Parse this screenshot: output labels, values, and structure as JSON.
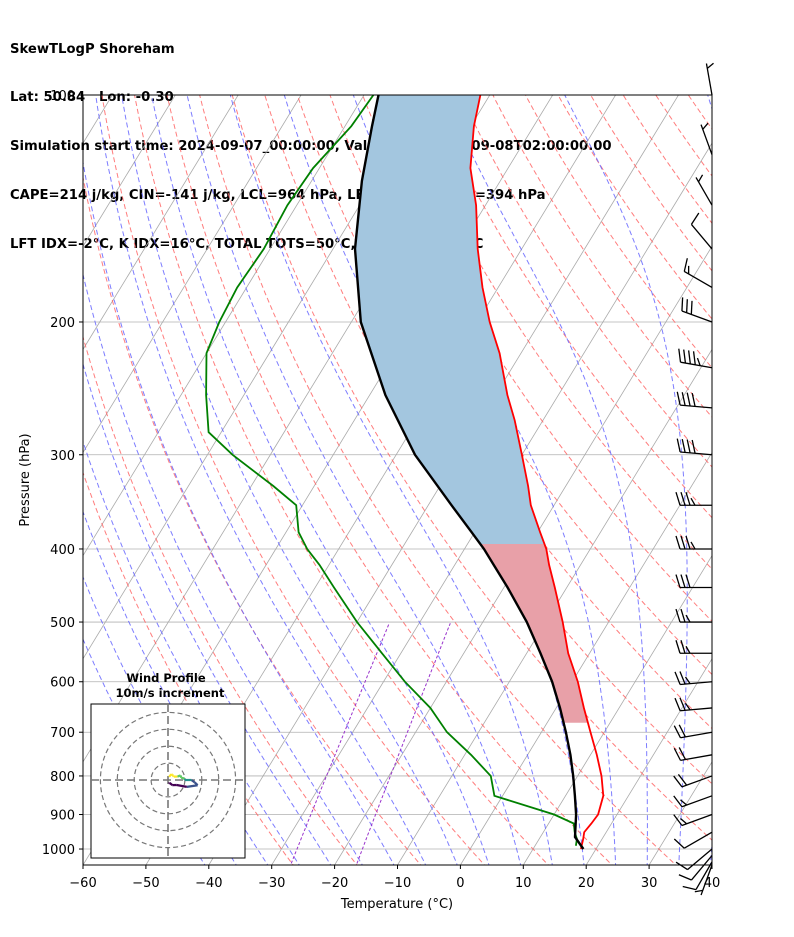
{
  "header": {
    "line1": "SkewTLogP Shoreham",
    "line2": "Lat: 50.84   Lon: -0.30",
    "line3": "Simulation start time: 2024-09-07_00:00:00, Valid time: 2024-09-08T02:00:00.00",
    "line4": "CAPE=214 j/kg, CIN=-141 j/kg, LCL=964 hPa, LFC=680 hPa, EQ=394 hPa",
    "line5": "LFT IDX=-2°C, K IDX=16°C, TOTAL TOTS=50°C, SHWTR_IDX=2°C"
  },
  "colors": {
    "temperature": "#ff0000",
    "dewpoint": "#008000",
    "parcel": "#000000",
    "cape_fill": "#a3c6df",
    "cin_fill": "#e8a0a8",
    "dry_adiabat": "#ff6666",
    "moist_adiabat": "#6666ff",
    "mixing_ratio": "#9933cc",
    "isotherm": "#aaaaaa"
  },
  "chart_data": {
    "type": "line",
    "title": "",
    "xlabel": "Temperature (°C)",
    "ylabel": "Pressure (hPa)",
    "xlim": [
      -60,
      40
    ],
    "ylim": [
      1050,
      100
    ],
    "y_scale": "log",
    "x_ticks": [
      "−60",
      "−50",
      "−40",
      "−30",
      "−20",
      "−10",
      "0",
      "10",
      "20",
      "30",
      "40"
    ],
    "y_ticks": [
      "100",
      "200",
      "300",
      "400",
      "500",
      "600",
      "700",
      "800",
      "900",
      "1000"
    ],
    "grid": true,
    "series": [
      {
        "key": "temperature",
        "pressure": [
          1000,
          970,
          950,
          925,
          900,
          850,
          800,
          750,
          700,
          650,
          600,
          550,
          500,
          450,
          420,
          400,
          380,
          350,
          330,
          300,
          270,
          250,
          220,
          200,
          180,
          160,
          140,
          125,
          110,
          100
        ],
        "temp": [
          17.6,
          17.0,
          16.5,
          16.8,
          17.0,
          16.0,
          13.8,
          11.0,
          7.8,
          4.4,
          0.9,
          -3.4,
          -7.3,
          -11.9,
          -15.0,
          -17.0,
          -19.6,
          -23.7,
          -26.0,
          -30.0,
          -34.5,
          -38.1,
          -43.4,
          -48.0,
          -52.5,
          -57.0,
          -61.5,
          -66.0,
          -69.5,
          -71.5
        ]
      },
      {
        "key": "dewpoint",
        "pressure": [
          990,
          970,
          950,
          925,
          900,
          850,
          800,
          750,
          700,
          650,
          600,
          550,
          500,
          450,
          420,
          400,
          380,
          350,
          330,
          300,
          280,
          250,
          220,
          200,
          180,
          160,
          140,
          125,
          110,
          100
        ],
        "temp": [
          16.5,
          16.0,
          15.0,
          14.0,
          10.0,
          -1.3,
          -3.8,
          -9.0,
          -15.0,
          -20.0,
          -26.6,
          -33.0,
          -40.0,
          -47.0,
          -51.5,
          -55.0,
          -58.0,
          -61.0,
          -66.5,
          -76.0,
          -82.0,
          -86.0,
          -90.0,
          -91.0,
          -91.5,
          -91.0,
          -91.5,
          -91.0,
          -89.0,
          -88.5
        ]
      },
      {
        "key": "parcel",
        "pressure": [
          1000,
          964,
          900,
          850,
          800,
          750,
          700,
          650,
          600,
          550,
          500,
          450,
          420,
          400,
          380,
          350,
          300,
          250,
          200,
          160,
          130,
          110,
          100
        ],
        "temp": [
          18.0,
          15.5,
          13.5,
          11.5,
          9.3,
          6.8,
          3.9,
          0.6,
          -3.2,
          -7.8,
          -13.0,
          -19.4,
          -23.8,
          -26.9,
          -30.5,
          -36.3,
          -47.0,
          -57.5,
          -68.5,
          -76.5,
          -82.0,
          -85.7,
          -87.7
        ]
      }
    ],
    "wind_barbs": {
      "pressure": [
        1050,
        1040,
        1020,
        1000,
        950,
        900,
        850,
        800,
        750,
        700,
        650,
        600,
        550,
        500,
        450,
        400,
        350,
        300,
        260,
        230,
        200,
        180,
        160,
        140,
        120,
        100
      ],
      "speed_kt": [
        5,
        10,
        10,
        10,
        10,
        15,
        15,
        20,
        20,
        20,
        25,
        25,
        25,
        25,
        30,
        35,
        35,
        40,
        40,
        45,
        30,
        15,
        10,
        5,
        5,
        5
      ],
      "direction_deg": [
        200,
        210,
        220,
        230,
        240,
        250,
        250,
        250,
        260,
        260,
        265,
        265,
        270,
        270,
        270,
        270,
        270,
        275,
        275,
        280,
        290,
        300,
        320,
        330,
        340,
        350
      ]
    }
  },
  "hodograph": {
    "title": "Wind Profile",
    "subtitle": "10m/s increment"
  }
}
